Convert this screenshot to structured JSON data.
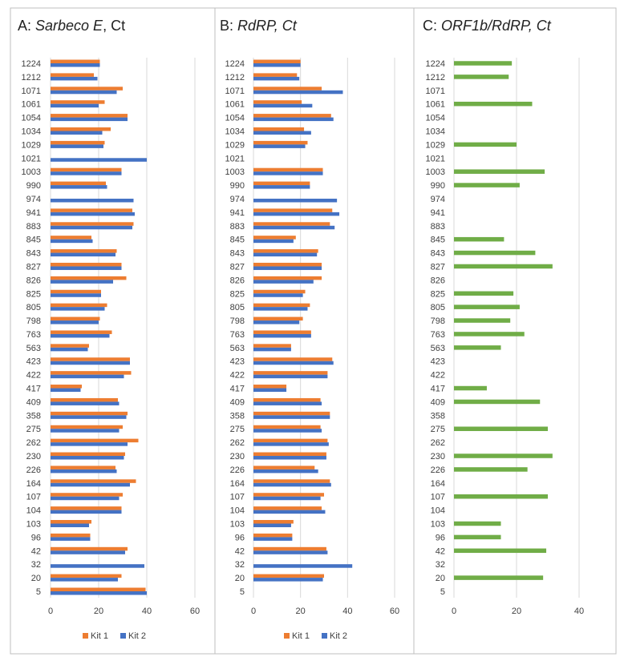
{
  "colors": {
    "kit1": "#ED7D31",
    "kit2": "#4472C4",
    "orf": "#70AD47",
    "grid": "#D9D9D9",
    "border": "#BFBFBF"
  },
  "chart_data": [
    {
      "type": "bar",
      "orientation": "horizontal",
      "title_prefix": "A: ",
      "title_main": "Sarbeco E",
      "title_suffix": ", Ct",
      "categories": [
        "1224",
        "1212",
        "1071",
        "1061",
        "1054",
        "1034",
        "1029",
        "1021",
        "1003",
        "990",
        "974",
        "941",
        "883",
        "845",
        "843",
        "827",
        "826",
        "825",
        "805",
        "798",
        "763",
        "563",
        "423",
        "422",
        "417",
        "409",
        "358",
        "275",
        "262",
        "230",
        "226",
        "164",
        "107",
        "104",
        "103",
        "96",
        "42",
        "32",
        "20",
        "5"
      ],
      "xlim": [
        0,
        60
      ],
      "xticks": [
        "0",
        "20",
        "40",
        "60"
      ],
      "series": [
        {
          "name": "Kit 1",
          "color": "#ED7D31",
          "values": [
            20.5,
            18,
            30,
            22.5,
            32,
            25,
            22.5,
            null,
            29.5,
            23,
            null,
            34,
            34.5,
            17,
            27.5,
            29.5,
            31.5,
            21,
            23.5,
            20.5,
            25.5,
            16,
            33,
            33.5,
            13,
            28,
            32,
            30,
            36.5,
            31,
            27,
            35.5,
            30,
            29.5,
            17,
            16.5,
            32,
            null,
            29.5,
            39.5
          ]
        },
        {
          "name": "Kit 2",
          "color": "#4472C4",
          "values": [
            20.5,
            19.5,
            27.5,
            20,
            32,
            21.5,
            22,
            40,
            29.5,
            23.5,
            34.5,
            35,
            34,
            17.5,
            27,
            29.5,
            26,
            21,
            22.5,
            20,
            24.5,
            15.5,
            33,
            30.5,
            12.5,
            28.5,
            31.5,
            28.5,
            32,
            30.5,
            27.5,
            33,
            28.5,
            29.5,
            16,
            16.5,
            31,
            39,
            28,
            40
          ]
        }
      ],
      "legend": [
        "Kit 1",
        "Kit 2"
      ],
      "legend_position": "bottom"
    },
    {
      "type": "bar",
      "orientation": "horizontal",
      "title_prefix": "B: ",
      "title_main": "RdRP, Ct",
      "title_suffix": "",
      "categories": [
        "1224",
        "1212",
        "1071",
        "1061",
        "1054",
        "1034",
        "1029",
        "1021",
        "1003",
        "990",
        "974",
        "941",
        "883",
        "845",
        "843",
        "827",
        "826",
        "825",
        "805",
        "798",
        "763",
        "563",
        "423",
        "422",
        "417",
        "409",
        "358",
        "275",
        "262",
        "230",
        "226",
        "164",
        "107",
        "104",
        "103",
        "96",
        "42",
        "32",
        "20",
        "5"
      ],
      "xlim": [
        0,
        60
      ],
      "xticks": [
        "0",
        "20",
        "40",
        "60"
      ],
      "series": [
        {
          "name": "Kit 1",
          "color": "#ED7D31",
          "values": [
            20,
            18.5,
            29,
            20.5,
            33,
            21.5,
            23,
            null,
            29.5,
            24,
            null,
            33.5,
            32.5,
            18,
            27.5,
            29,
            29,
            22,
            24,
            21,
            24.5,
            16,
            33.5,
            31.5,
            14,
            28.5,
            32.5,
            28.5,
            31.5,
            31,
            26,
            32.5,
            30,
            29,
            17,
            16.5,
            31,
            null,
            30,
            null
          ]
        },
        {
          "name": "Kit 2",
          "color": "#4472C4",
          "values": [
            20,
            19.5,
            38,
            25,
            34,
            24.5,
            22,
            null,
            29.5,
            24,
            35.5,
            36.5,
            34.5,
            17,
            27,
            29,
            25.5,
            21,
            23,
            19.5,
            24.5,
            16,
            34,
            31.5,
            14,
            29,
            32.5,
            29,
            32,
            31,
            27.5,
            33,
            28.5,
            30.5,
            16,
            16.5,
            31.5,
            42,
            29.5,
            null
          ]
        }
      ],
      "legend": [
        "Kit 1",
        "Kit 2"
      ],
      "legend_position": "bottom"
    },
    {
      "type": "bar",
      "orientation": "horizontal",
      "title_prefix": "C: ",
      "title_main": "ORF1b/RdRP, Ct",
      "title_suffix": "",
      "categories": [
        "1224",
        "1212",
        "1071",
        "1061",
        "1054",
        "1034",
        "1029",
        "1021",
        "1003",
        "990",
        "974",
        "941",
        "883",
        "845",
        "843",
        "827",
        "826",
        "825",
        "805",
        "798",
        "763",
        "563",
        "423",
        "422",
        "417",
        "409",
        "358",
        "275",
        "262",
        "230",
        "226",
        "164",
        "107",
        "104",
        "103",
        "96",
        "42",
        "32",
        "20",
        "5"
      ],
      "xlim": [
        0,
        40
      ],
      "xticks": [
        "0",
        "20",
        "40"
      ],
      "series": [
        {
          "name": "",
          "color": "#70AD47",
          "values": [
            18.5,
            17.5,
            null,
            25,
            null,
            null,
            20,
            null,
            29,
            21,
            null,
            null,
            null,
            16,
            26,
            31.5,
            null,
            19,
            21,
            18,
            22.5,
            15,
            null,
            null,
            10.5,
            27.5,
            null,
            30,
            null,
            31.5,
            23.5,
            null,
            30,
            null,
            15,
            15,
            29.5,
            null,
            28.5,
            null
          ]
        }
      ],
      "legend": [],
      "legend_position": "none"
    }
  ]
}
